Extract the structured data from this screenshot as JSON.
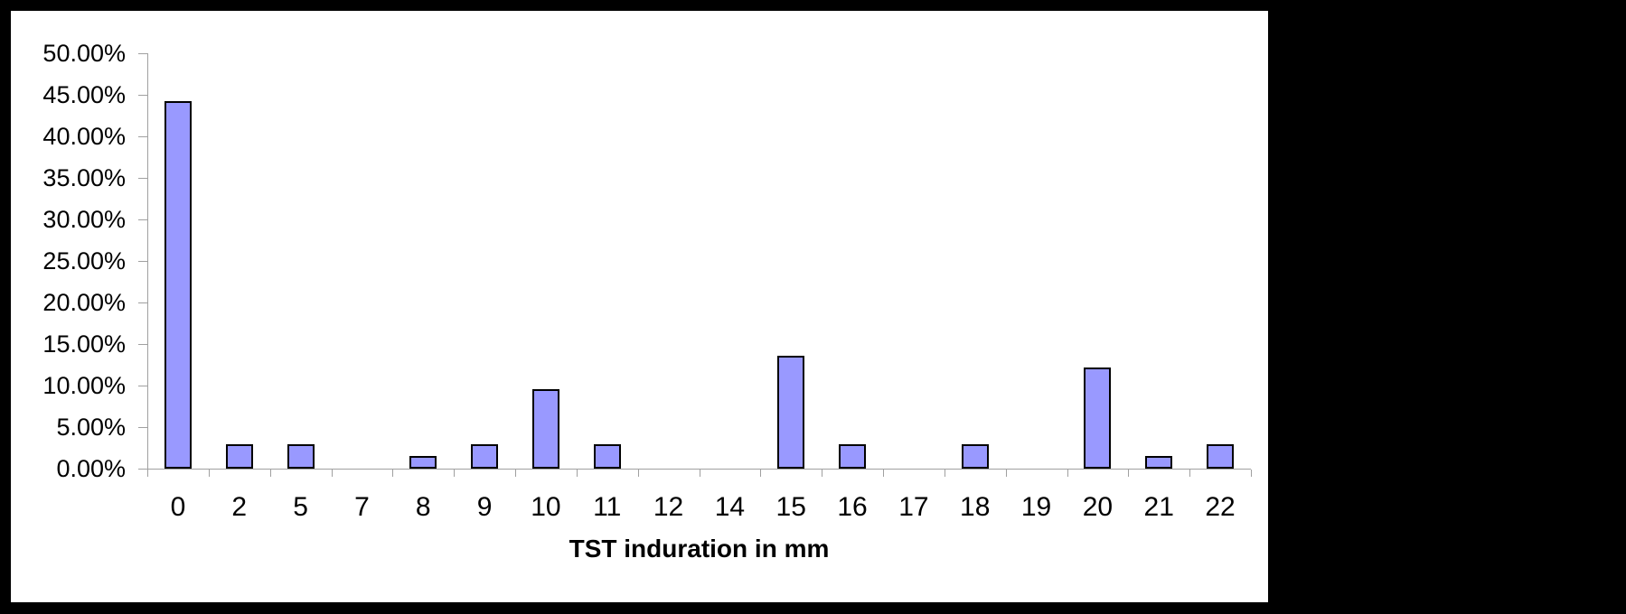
{
  "window": {
    "background_color": "#000000",
    "panel_color": "#FFFFFF"
  },
  "chart_data": {
    "type": "bar",
    "title": "",
    "xlabel": "TST induration in mm",
    "ylabel": "",
    "categories": [
      "0",
      "2",
      "5",
      "7",
      "8",
      "9",
      "10",
      "11",
      "12",
      "14",
      "15",
      "16",
      "17",
      "18",
      "19",
      "20",
      "21",
      "22"
    ],
    "values": [
      44.0,
      2.67,
      2.67,
      0,
      1.33,
      2.67,
      9.33,
      2.67,
      0,
      0,
      13.33,
      2.67,
      0,
      2.67,
      0,
      12.0,
      1.33,
      2.67
    ],
    "ylim": [
      0,
      50
    ],
    "y_tick_step": 5,
    "y_tick_labels": [
      "50.00%",
      "45.00%",
      "40.00%",
      "35.00%",
      "30.00%",
      "25.00%",
      "20.00%",
      "15.00%",
      "10.00%",
      "5.00%",
      "0.00%"
    ],
    "grid": false,
    "legend": "none",
    "bar_fill_color": "#9999FF",
    "bar_border_color": "#000000",
    "axis_color": "#A0A0A0",
    "label_text_color": "#000000"
  }
}
